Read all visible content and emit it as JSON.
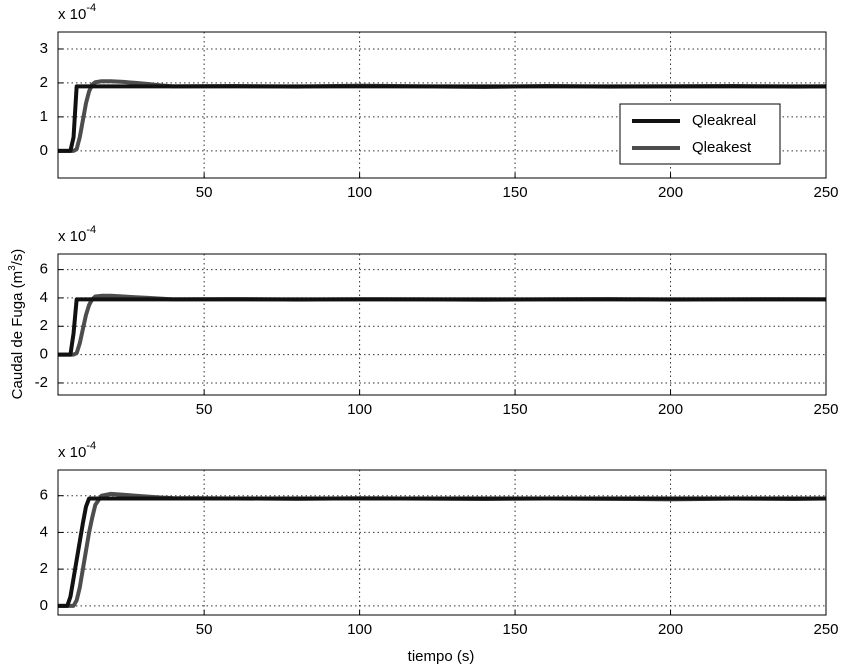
{
  "chart_data": [
    {
      "type": "line",
      "y_multiplier": {
        "base": "x 10",
        "exponent": "-4"
      },
      "x": [
        3,
        6,
        7,
        8,
        9,
        10,
        11,
        12,
        13,
        14,
        15,
        17,
        20,
        24,
        28,
        32,
        36,
        40,
        60,
        80,
        100,
        120,
        140,
        160,
        180,
        200,
        220,
        240,
        250
      ],
      "series": [
        {
          "name": "Qleakreal",
          "color": "#111111",
          "values": [
            0,
            0,
            0,
            0.4,
            1.9,
            1.9,
            1.9,
            1.9,
            1.9,
            1.9,
            1.9,
            1.9,
            1.9,
            1.9,
            1.9,
            1.9,
            1.9,
            1.9,
            1.9,
            1.9,
            1.9,
            1.9,
            1.9,
            1.9,
            1.9,
            1.9,
            1.9,
            1.9,
            1.9
          ]
        },
        {
          "name": "Qleakest",
          "color": "#4d4d4d",
          "values": [
            0,
            0,
            0,
            0,
            0.05,
            0.4,
            0.9,
            1.4,
            1.75,
            1.95,
            2.02,
            2.05,
            2.05,
            2.03,
            2.0,
            1.97,
            1.93,
            1.9,
            1.91,
            1.89,
            1.92,
            1.9,
            1.88,
            1.91,
            1.89,
            1.9,
            1.91,
            1.89,
            1.9
          ]
        }
      ],
      "xlim": [
        3,
        250
      ],
      "xticks": [
        50,
        100,
        150,
        200,
        250
      ],
      "ylim": [
        -0.8,
        3.5
      ],
      "yticks": [
        0,
        1,
        2,
        3
      ],
      "grid": true,
      "legend": "right"
    },
    {
      "type": "line",
      "y_multiplier": {
        "base": "x 10",
        "exponent": "-4"
      },
      "y_label": {
        "head": "Caudal de Fuga (m",
        "sup": "3",
        "tail": "/s)"
      },
      "x": [
        3,
        6,
        7,
        8,
        9,
        10,
        11,
        12,
        13,
        14,
        15,
        17,
        20,
        24,
        28,
        32,
        36,
        40,
        60,
        80,
        100,
        120,
        140,
        160,
        180,
        200,
        220,
        240,
        250
      ],
      "series": [
        {
          "color": "#111111",
          "values": [
            0,
            0,
            0,
            1.5,
            3.9,
            3.9,
            3.9,
            3.9,
            3.9,
            3.9,
            3.9,
            3.9,
            3.9,
            3.9,
            3.9,
            3.9,
            3.9,
            3.9,
            3.9,
            3.9,
            3.9,
            3.9,
            3.9,
            3.9,
            3.9,
            3.9,
            3.9,
            3.9,
            3.9
          ]
        },
        {
          "color": "#4d4d4d",
          "values": [
            0,
            0,
            0,
            0,
            0.1,
            0.8,
            1.8,
            2.8,
            3.5,
            3.9,
            4.1,
            4.15,
            4.15,
            4.1,
            4.05,
            4.0,
            3.95,
            3.9,
            3.92,
            3.88,
            3.91,
            3.9,
            3.87,
            3.9,
            3.92,
            3.88,
            3.9,
            3.91,
            3.9
          ]
        }
      ],
      "xlim": [
        3,
        250
      ],
      "xticks": [
        50,
        100,
        150,
        200,
        250
      ],
      "ylim": [
        -2.85,
        7.1
      ],
      "yticks": [
        -2,
        0,
        2,
        4,
        6
      ],
      "grid": true
    },
    {
      "type": "line",
      "y_multiplier": {
        "base": "x 10",
        "exponent": "-4"
      },
      "x_label": "tiempo (s)",
      "x": [
        3,
        6,
        7,
        8,
        9,
        10,
        11,
        12,
        13,
        14,
        15,
        17,
        20,
        24,
        28,
        32,
        36,
        40,
        60,
        80,
        100,
        120,
        140,
        160,
        180,
        200,
        220,
        240,
        250
      ],
      "series": [
        {
          "color": "#111111",
          "values": [
            0,
            0,
            0.5,
            1.5,
            2.5,
            3.5,
            4.5,
            5.4,
            5.85,
            5.85,
            5.85,
            5.85,
            5.85,
            5.85,
            5.85,
            5.85,
            5.85,
            5.85,
            5.85,
            5.85,
            5.85,
            5.85,
            5.85,
            5.85,
            5.85,
            5.85,
            5.85,
            5.85,
            5.85
          ]
        },
        {
          "color": "#4d4d4d",
          "values": [
            0,
            0,
            0,
            0,
            0.3,
            1.0,
            2.0,
            3.0,
            4.0,
            4.8,
            5.5,
            6.0,
            6.1,
            6.05,
            6.0,
            5.95,
            5.9,
            5.87,
            5.85,
            5.83,
            5.86,
            5.84,
            5.82,
            5.85,
            5.83,
            5.8,
            5.84,
            5.82,
            5.85
          ]
        }
      ],
      "xlim": [
        3,
        250
      ],
      "xticks": [
        50,
        100,
        150,
        200,
        250
      ],
      "ylim": [
        -0.5,
        7.4
      ],
      "yticks": [
        0,
        2,
        4,
        6
      ],
      "grid": true
    }
  ]
}
